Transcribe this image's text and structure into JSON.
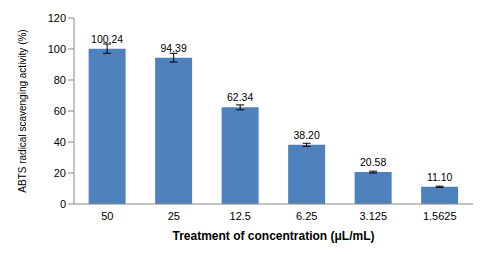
{
  "chart_data": {
    "type": "bar",
    "x_label": "Treatment of concentration (μL/mL)",
    "y_label": "ABTS radical scavenging activity (%)",
    "categories": [
      "50",
      "25",
      "12.5",
      "6.25",
      "3.125",
      "1.5625"
    ],
    "values": [
      100.24,
      94.39,
      62.34,
      38.2,
      20.58,
      11.1
    ],
    "value_labels": [
      "100.24",
      "94.39",
      "62.34",
      "38.20",
      "20.58",
      "11.10"
    ],
    "errors": [
      3,
      2.8,
      1.6,
      1,
      0.6,
      0.4
    ],
    "color": "#4f81bd",
    "ylim": [
      0,
      120
    ],
    "yticks": [
      0,
      20,
      40,
      60,
      80,
      100,
      120
    ],
    "grid": false,
    "data_labels": true
  }
}
